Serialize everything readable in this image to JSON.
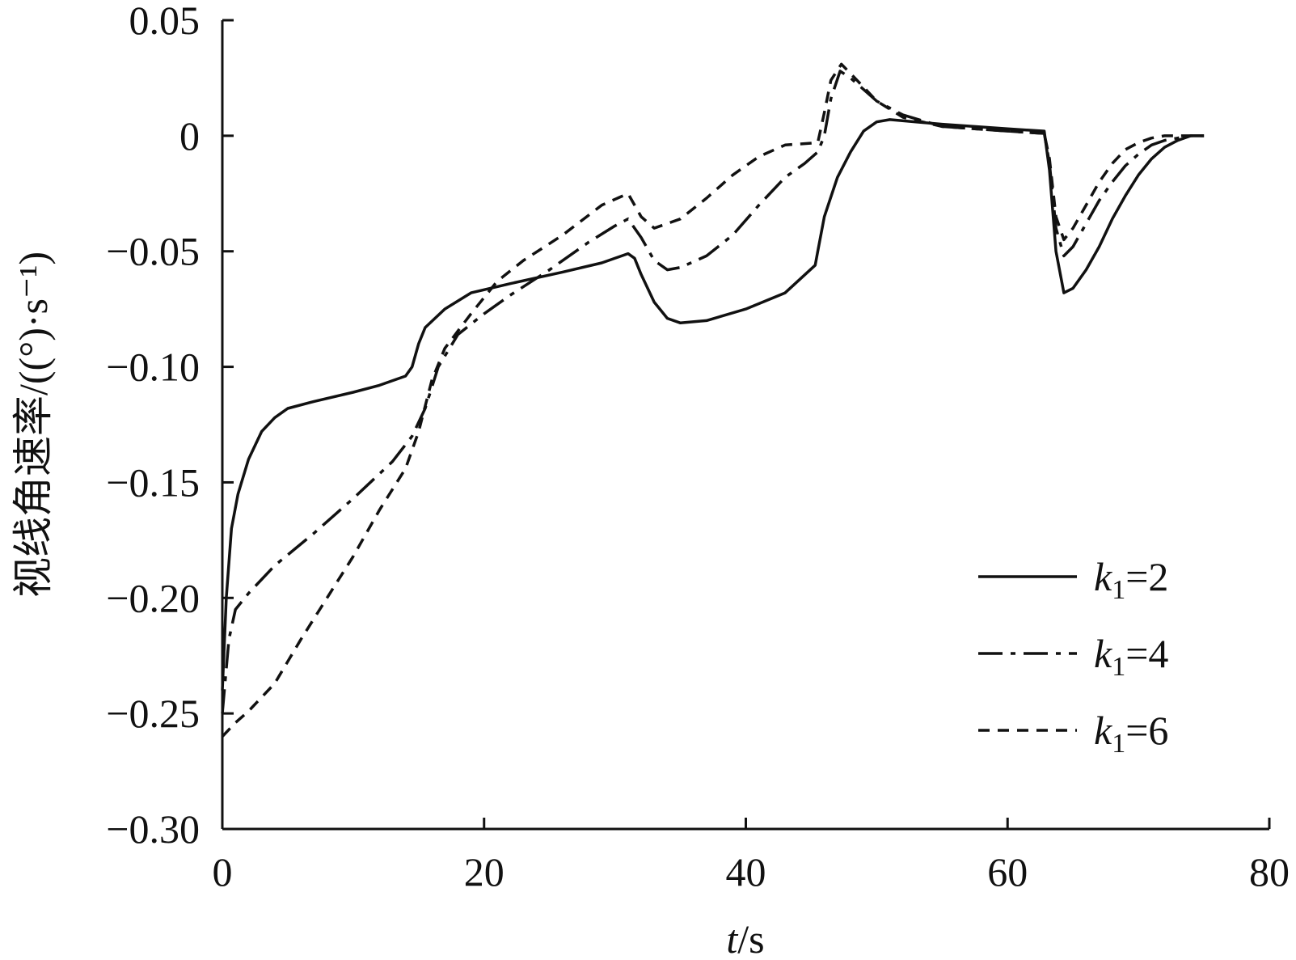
{
  "chart_data": {
    "type": "line",
    "title": "",
    "xlabel": {
      "italic": "t",
      "rest": "/s"
    },
    "ylabel": "视线角速率/((°)·s⁻¹)",
    "xlim": [
      0,
      80
    ],
    "ylim": [
      -0.3,
      0.05
    ],
    "x_ticks": [
      0,
      20,
      40,
      60,
      80
    ],
    "x_tick_labels": [
      "0",
      "20",
      "40",
      "60",
      "80"
    ],
    "y_ticks": [
      0.05,
      0,
      -0.05,
      -0.1,
      -0.15,
      -0.2,
      -0.25,
      -0.3
    ],
    "y_tick_labels": [
      "0.05",
      "0",
      "−0.05",
      "−0.10",
      "−0.15",
      "−0.20",
      "−0.25",
      "−0.30"
    ],
    "grid": false,
    "legend_position": "bottom-right",
    "series": [
      {
        "name": "k1=2",
        "legend": {
          "var": "k",
          "sub": "1",
          "rest": "=2"
        },
        "dash": "solid",
        "points": [
          [
            0,
            -0.24
          ],
          [
            0.3,
            -0.2
          ],
          [
            0.7,
            -0.17
          ],
          [
            1.2,
            -0.155
          ],
          [
            2,
            -0.14
          ],
          [
            3,
            -0.128
          ],
          [
            4,
            -0.122
          ],
          [
            5,
            -0.118
          ],
          [
            7,
            -0.115
          ],
          [
            10,
            -0.111
          ],
          [
            12,
            -0.108
          ],
          [
            14,
            -0.104
          ],
          [
            14.5,
            -0.1
          ],
          [
            15,
            -0.09
          ],
          [
            15.5,
            -0.083
          ],
          [
            17,
            -0.075
          ],
          [
            19,
            -0.068
          ],
          [
            22,
            -0.064
          ],
          [
            26,
            -0.059
          ],
          [
            29,
            -0.055
          ],
          [
            31,
            -0.051
          ],
          [
            31.5,
            -0.053
          ],
          [
            32,
            -0.06
          ],
          [
            33,
            -0.072
          ],
          [
            34,
            -0.079
          ],
          [
            35,
            -0.081
          ],
          [
            37,
            -0.08
          ],
          [
            40,
            -0.075
          ],
          [
            43,
            -0.068
          ],
          [
            45.3,
            -0.056
          ],
          [
            45.5,
            -0.05
          ],
          [
            46,
            -0.035
          ],
          [
            47,
            -0.018
          ],
          [
            48,
            -0.007
          ],
          [
            49,
            0.002
          ],
          [
            50,
            0.006
          ],
          [
            51,
            0.007
          ],
          [
            55,
            0.005
          ],
          [
            60,
            0.003
          ],
          [
            62.8,
            0.002
          ],
          [
            63.2,
            -0.015
          ],
          [
            63.7,
            -0.05
          ],
          [
            64.3,
            -0.068
          ],
          [
            65,
            -0.066
          ],
          [
            66,
            -0.058
          ],
          [
            67,
            -0.048
          ],
          [
            68,
            -0.036
          ],
          [
            69,
            -0.026
          ],
          [
            70,
            -0.017
          ],
          [
            71,
            -0.01
          ],
          [
            72,
            -0.005
          ],
          [
            73,
            -0.002
          ],
          [
            74,
            0
          ],
          [
            75,
            0
          ]
        ]
      },
      {
        "name": "k1=4",
        "legend": {
          "var": "k",
          "sub": "1",
          "rest": "=4"
        },
        "dash": "dashdot",
        "points": [
          [
            0,
            -0.25
          ],
          [
            0.5,
            -0.218
          ],
          [
            1,
            -0.205
          ],
          [
            2,
            -0.198
          ],
          [
            4,
            -0.186
          ],
          [
            7,
            -0.172
          ],
          [
            10,
            -0.157
          ],
          [
            13,
            -0.141
          ],
          [
            14.5,
            -0.13
          ],
          [
            15.5,
            -0.118
          ],
          [
            16.5,
            -0.1
          ],
          [
            18,
            -0.086
          ],
          [
            20,
            -0.077
          ],
          [
            22,
            -0.069
          ],
          [
            25,
            -0.058
          ],
          [
            28,
            -0.046
          ],
          [
            30,
            -0.039
          ],
          [
            31,
            -0.036
          ],
          [
            32,
            -0.044
          ],
          [
            33,
            -0.054
          ],
          [
            34,
            -0.058
          ],
          [
            35,
            -0.057
          ],
          [
            37,
            -0.052
          ],
          [
            39,
            -0.043
          ],
          [
            41,
            -0.03
          ],
          [
            43,
            -0.018
          ],
          [
            44.5,
            -0.012
          ],
          [
            45.5,
            -0.007
          ],
          [
            46,
            0.0
          ],
          [
            46.5,
            0.016
          ],
          [
            47.2,
            0.028
          ],
          [
            48,
            0.025
          ],
          [
            50,
            0.015
          ],
          [
            52,
            0.009
          ],
          [
            55,
            0.004
          ],
          [
            60,
            0.002
          ],
          [
            62.8,
            0.001
          ],
          [
            63.2,
            -0.012
          ],
          [
            63.7,
            -0.04
          ],
          [
            64.3,
            -0.052
          ],
          [
            65,
            -0.048
          ],
          [
            66,
            -0.038
          ],
          [
            67,
            -0.028
          ],
          [
            68,
            -0.02
          ],
          [
            69,
            -0.013
          ],
          [
            70,
            -0.008
          ],
          [
            71,
            -0.004
          ],
          [
            72,
            -0.002
          ],
          [
            73,
            -0.001
          ],
          [
            74,
            0
          ],
          [
            75,
            0
          ]
        ]
      },
      {
        "name": "k1=6",
        "legend": {
          "var": "k",
          "sub": "1",
          "rest": "=6"
        },
        "dash": "dashed",
        "points": [
          [
            0,
            -0.26
          ],
          [
            1,
            -0.254
          ],
          [
            2,
            -0.249
          ],
          [
            4,
            -0.237
          ],
          [
            6,
            -0.218
          ],
          [
            8,
            -0.2
          ],
          [
            10,
            -0.182
          ],
          [
            12,
            -0.162
          ],
          [
            14,
            -0.144
          ],
          [
            15,
            -0.128
          ],
          [
            16,
            -0.106
          ],
          [
            17,
            -0.092
          ],
          [
            19,
            -0.077
          ],
          [
            21,
            -0.063
          ],
          [
            23,
            -0.054
          ],
          [
            26,
            -0.043
          ],
          [
            29,
            -0.03
          ],
          [
            31,
            -0.025
          ],
          [
            32,
            -0.035
          ],
          [
            33,
            -0.04
          ],
          [
            35,
            -0.036
          ],
          [
            37,
            -0.027
          ],
          [
            39,
            -0.017
          ],
          [
            41,
            -0.009
          ],
          [
            43,
            -0.004
          ],
          [
            45.5,
            -0.003
          ],
          [
            46,
            0.01
          ],
          [
            46.5,
            0.024
          ],
          [
            47.3,
            0.031
          ],
          [
            48.5,
            0.024
          ],
          [
            50,
            0.015
          ],
          [
            52,
            0.008
          ],
          [
            55,
            0.004
          ],
          [
            60,
            0.002
          ],
          [
            62.8,
            0.001
          ],
          [
            63.2,
            -0.01
          ],
          [
            63.7,
            -0.035
          ],
          [
            64.3,
            -0.045
          ],
          [
            65,
            -0.04
          ],
          [
            66,
            -0.03
          ],
          [
            67,
            -0.02
          ],
          [
            68,
            -0.012
          ],
          [
            69,
            -0.006
          ],
          [
            70,
            -0.003
          ],
          [
            71,
            -0.001
          ],
          [
            72,
            0
          ],
          [
            75,
            0
          ]
        ]
      }
    ]
  }
}
